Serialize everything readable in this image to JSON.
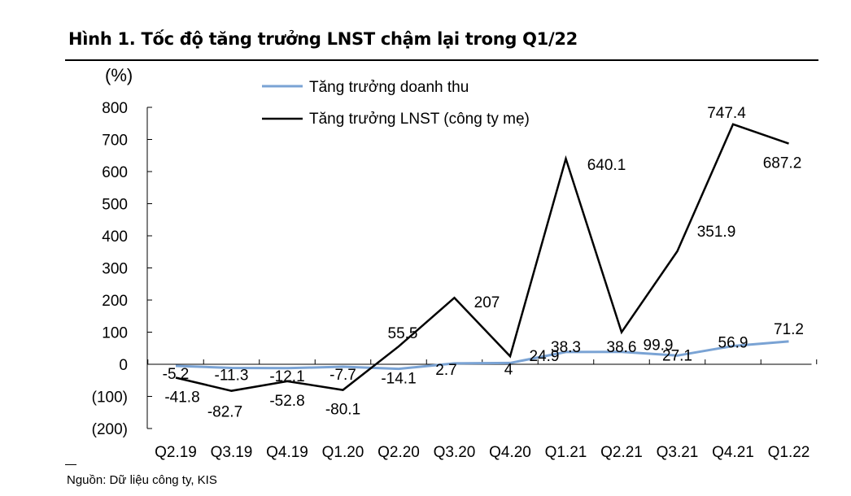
{
  "figure": {
    "title": "Hình 1. Tốc độ tăng trưởng LNST chậm lại trong Q1/22",
    "source": "Nguồn: Dữ liệu công ty, KIS"
  },
  "colors": {
    "revenue": "#7aa3d4",
    "profit": "#000000"
  },
  "chart_data": {
    "type": "line",
    "title": "Hình 1. Tốc độ tăng trưởng LNST chậm lại trong Q1/22",
    "ylabel": "(%)",
    "xlabel": "",
    "ylim": [
      -200,
      800
    ],
    "yticks": [
      -200,
      -100,
      0,
      100,
      200,
      300,
      400,
      500,
      600,
      700,
      800
    ],
    "ytick_labels": [
      "(200)",
      "(100)",
      "0",
      "100",
      "200",
      "300",
      "400",
      "500",
      "600",
      "700",
      "800"
    ],
    "categories": [
      "Q2.19",
      "Q3.19",
      "Q4.19",
      "Q1.20",
      "Q2.20",
      "Q3.20",
      "Q4.20",
      "Q1.21",
      "Q2.21",
      "Q3.21",
      "Q4.21",
      "Q1.22"
    ],
    "legend_position": "top-left",
    "series": [
      {
        "name": "Tăng trưởng doanh thu",
        "values": [
          -5.2,
          -11.3,
          -12.1,
          -7.7,
          -14.1,
          2.7,
          4,
          38.3,
          38.6,
          27.1,
          56.9,
          71.2
        ],
        "labels": [
          "-5.2",
          "-11.3",
          "-12.1",
          "-7.7",
          "-14.1",
          "2.7",
          "4",
          "38.3",
          "38.6",
          "27.1",
          "56.9",
          "71.2"
        ]
      },
      {
        "name": "Tăng trưởng LNST (công ty mẹ)",
        "values": [
          -41.8,
          -82.7,
          -52.8,
          -80.1,
          55.5,
          207,
          24.9,
          640.1,
          99.9,
          351.9,
          747.4,
          687.2
        ],
        "labels": [
          "-41.8",
          "-82.7",
          "-52.8",
          "-80.1",
          "55.5",
          "207",
          "24.9",
          "640.1",
          "99.9",
          "351.9",
          "747.4",
          "687.2"
        ]
      }
    ]
  }
}
